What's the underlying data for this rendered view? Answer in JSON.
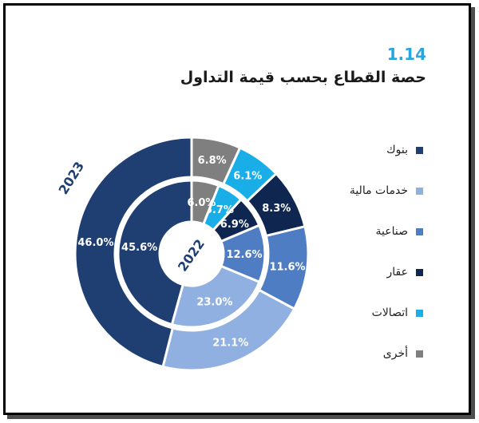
{
  "figure": {
    "number": "1.14",
    "title": "حصة القطاع بحسب قيمة التداول"
  },
  "chart_data": {
    "type": "pie",
    "style": "donut",
    "categories": [
      "بنوك",
      "خدمات مالية",
      "صناعية",
      "عقار",
      "اتصالات",
      "أخرى"
    ],
    "colors": [
      "#1f3f73",
      "#8fb0e0",
      "#4f7dc4",
      "#0f2750",
      "#1aaee8",
      "#7f7f7f"
    ],
    "series": [
      {
        "name": "2023",
        "values": [
          46.0,
          21.1,
          11.6,
          8.3,
          6.1,
          6.8
        ]
      },
      {
        "name": "2022",
        "values": [
          45.6,
          23.0,
          12.6,
          6.9,
          5.7,
          6.0
        ]
      }
    ],
    "legend_position": "right"
  }
}
